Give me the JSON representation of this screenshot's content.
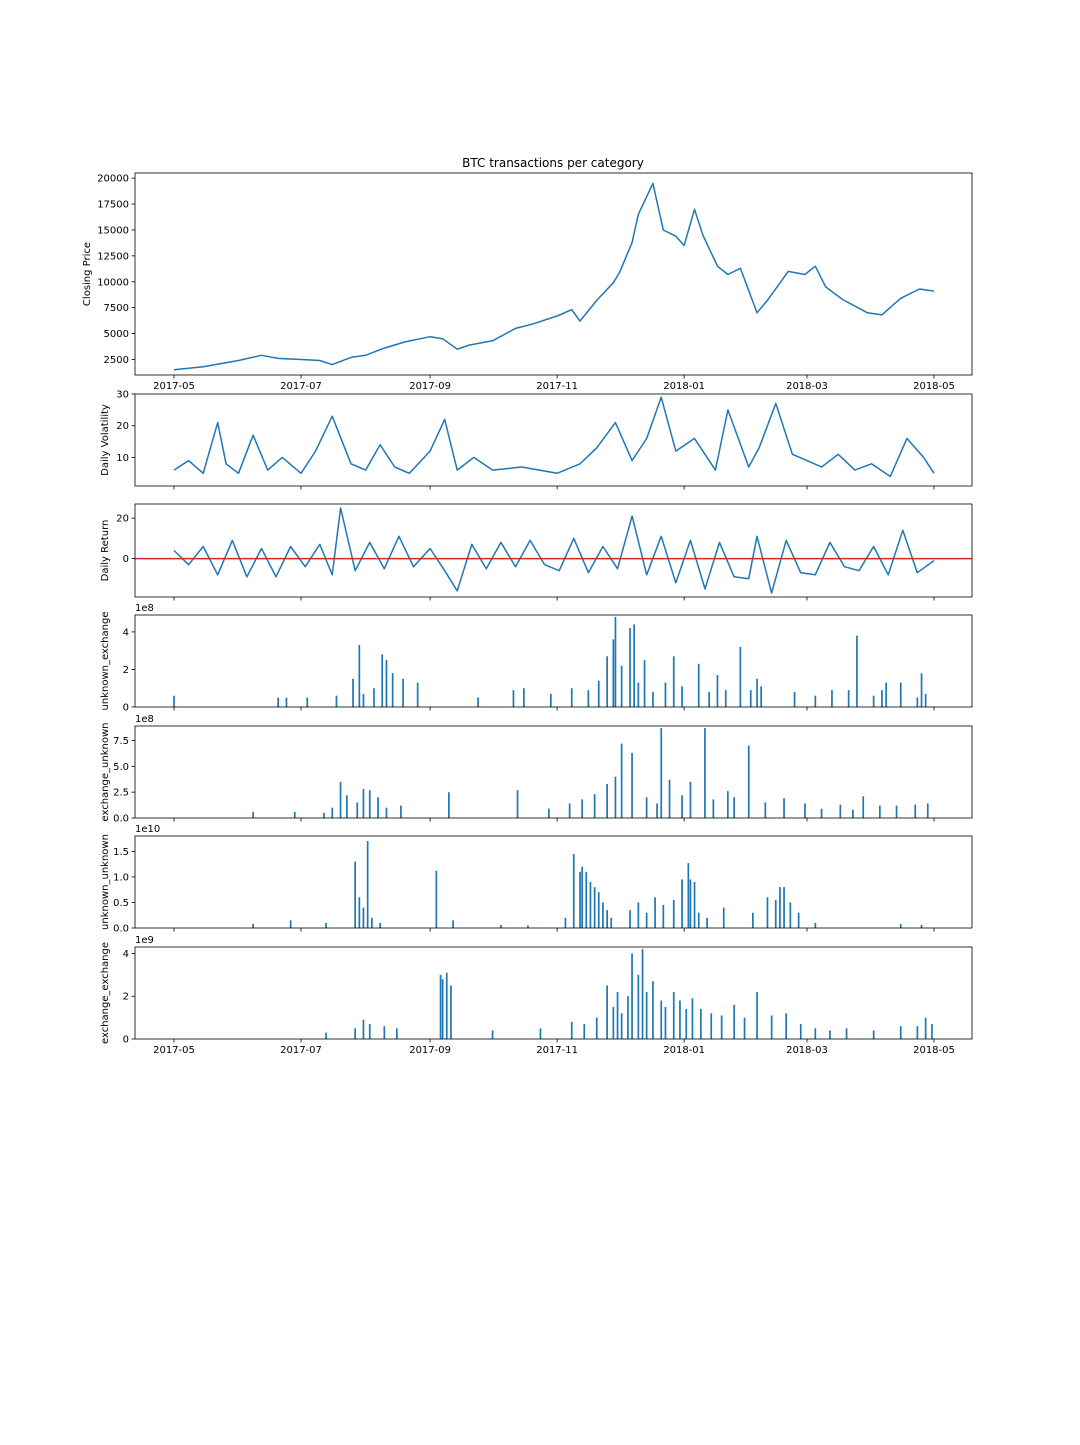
{
  "figure": {
    "title": "BTC transactions per category",
    "date_tick_labels": [
      "2017-05",
      "2017-07",
      "2017-09",
      "2017-11",
      "2018-01",
      "2018-03",
      "2018-05"
    ],
    "date_tick_values": [
      "2017-05-01",
      "2017-07-01",
      "2017-09-01",
      "2017-11-01",
      "2018-01-01",
      "2018-03-01",
      "2018-05-01"
    ],
    "colors": {
      "line": "#1f77b4",
      "bar": "#1f77b4",
      "zero_line": "#d62728"
    }
  },
  "chart_data": [
    {
      "type": "line",
      "title": "BTC transactions per category",
      "ylabel": "Closing Price",
      "xlabel": "",
      "x_range": [
        "2017-05-01",
        "2018-05-01"
      ],
      "ylim": [
        1000,
        20500
      ],
      "yticks": [
        2500,
        5000,
        7500,
        10000,
        12500,
        15000,
        17500,
        20000
      ],
      "grid": false,
      "series": [
        {
          "x": [
            "2017-05-01",
            "2017-05-15",
            "2017-06-01",
            "2017-06-12",
            "2017-06-20",
            "2017-07-01",
            "2017-07-10",
            "2017-07-16",
            "2017-07-25",
            "2017-08-01",
            "2017-08-10",
            "2017-08-20",
            "2017-09-01",
            "2017-09-07",
            "2017-09-14",
            "2017-09-20",
            "2017-10-01",
            "2017-10-12",
            "2017-10-20",
            "2017-11-01",
            "2017-11-08",
            "2017-11-12",
            "2017-11-20",
            "2017-11-28",
            "2017-12-01",
            "2017-12-07",
            "2017-12-10",
            "2017-12-17",
            "2017-12-22",
            "2017-12-28",
            "2018-01-01",
            "2018-01-06",
            "2018-01-10",
            "2018-01-17",
            "2018-01-22",
            "2018-01-28",
            "2018-02-05",
            "2018-02-10",
            "2018-02-20",
            "2018-02-28",
            "2018-03-05",
            "2018-03-10",
            "2018-03-18",
            "2018-03-30",
            "2018-04-06",
            "2018-04-15",
            "2018-04-24",
            "2018-05-01"
          ],
          "y": [
            1500,
            1800,
            2400,
            2900,
            2600,
            2500,
            2400,
            2000,
            2700,
            2900,
            3600,
            4200,
            4700,
            4500,
            3500,
            3900,
            4300,
            5500,
            5900,
            6700,
            7300,
            6200,
            8200,
            9900,
            10900,
            13800,
            16500,
            19500,
            15000,
            14400,
            13500,
            17000,
            14500,
            11500,
            10700,
            11300,
            7000,
            8200,
            11000,
            10700,
            11500,
            9500,
            8300,
            7000,
            6800,
            8400,
            9300,
            9100
          ]
        }
      ]
    },
    {
      "type": "line",
      "ylabel": "Daily Volatility",
      "xlabel": "",
      "x_range": [
        "2017-05-01",
        "2018-05-01"
      ],
      "ylim": [
        1,
        30
      ],
      "yticks": [
        10,
        20,
        30
      ],
      "grid": false,
      "series": [
        {
          "x": [
            "2017-05-01",
            "2017-05-08",
            "2017-05-15",
            "2017-05-22",
            "2017-05-26",
            "2017-06-01",
            "2017-06-08",
            "2017-06-15",
            "2017-06-22",
            "2017-07-01",
            "2017-07-08",
            "2017-07-16",
            "2017-07-25",
            "2017-08-01",
            "2017-08-08",
            "2017-08-15",
            "2017-08-22",
            "2017-09-01",
            "2017-09-08",
            "2017-09-14",
            "2017-09-22",
            "2017-10-01",
            "2017-10-15",
            "2017-11-01",
            "2017-11-12",
            "2017-11-20",
            "2017-11-29",
            "2017-12-07",
            "2017-12-14",
            "2017-12-21",
            "2017-12-28",
            "2018-01-06",
            "2018-01-16",
            "2018-01-22",
            "2018-02-01",
            "2018-02-06",
            "2018-02-14",
            "2018-02-22",
            "2018-03-01",
            "2018-03-08",
            "2018-03-16",
            "2018-03-24",
            "2018-04-01",
            "2018-04-10",
            "2018-04-18",
            "2018-04-26",
            "2018-05-01"
          ],
          "y": [
            6,
            9,
            5,
            21,
            8,
            5,
            17,
            6,
            10,
            5,
            12,
            23,
            8,
            6,
            14,
            7,
            5,
            12,
            22,
            6,
            10,
            6,
            7,
            5,
            8,
            13,
            21,
            9,
            16,
            29,
            12,
            16,
            6,
            25,
            7,
            13,
            27,
            11,
            9,
            7,
            11,
            6,
            8,
            4,
            16,
            10,
            5
          ]
        }
      ]
    },
    {
      "type": "line",
      "ylabel": "Daily Return",
      "xlabel": "",
      "x_range": [
        "2017-05-01",
        "2018-05-01"
      ],
      "ylim": [
        -19,
        27
      ],
      "yticks": [
        0,
        20
      ],
      "grid": false,
      "reference_line": 0,
      "series": [
        {
          "x": [
            "2017-05-01",
            "2017-05-08",
            "2017-05-15",
            "2017-05-22",
            "2017-05-29",
            "2017-06-05",
            "2017-06-12",
            "2017-06-19",
            "2017-06-26",
            "2017-07-03",
            "2017-07-10",
            "2017-07-16",
            "2017-07-20",
            "2017-07-27",
            "2017-08-03",
            "2017-08-10",
            "2017-08-17",
            "2017-08-24",
            "2017-09-01",
            "2017-09-08",
            "2017-09-14",
            "2017-09-21",
            "2017-09-28",
            "2017-10-05",
            "2017-10-12",
            "2017-10-19",
            "2017-10-26",
            "2017-11-02",
            "2017-11-09",
            "2017-11-16",
            "2017-11-23",
            "2017-11-30",
            "2017-12-07",
            "2017-12-14",
            "2017-12-21",
            "2017-12-28",
            "2018-01-04",
            "2018-01-11",
            "2018-01-18",
            "2018-01-25",
            "2018-02-01",
            "2018-02-05",
            "2018-02-12",
            "2018-02-19",
            "2018-02-26",
            "2018-03-05",
            "2018-03-12",
            "2018-03-19",
            "2018-03-26",
            "2018-04-02",
            "2018-04-09",
            "2018-04-16",
            "2018-04-23",
            "2018-05-01"
          ],
          "y": [
            4,
            -3,
            6,
            -8,
            9,
            -9,
            5,
            -9,
            6,
            -4,
            7,
            -8,
            25,
            -6,
            8,
            -5,
            11,
            -4,
            5,
            -6,
            -16,
            7,
            -5,
            8,
            -4,
            9,
            -3,
            -6,
            10,
            -7,
            6,
            -5,
            21,
            -8,
            11,
            -12,
            9,
            -15,
            8,
            -9,
            -10,
            11,
            -17,
            9,
            -7,
            -8,
            8,
            -4,
            -6,
            6,
            -8,
            14,
            -7,
            -1
          ]
        }
      ]
    },
    {
      "type": "bar",
      "ylabel": "unknown_exchange",
      "xlabel": "",
      "scale_label": "1e8",
      "x_range": [
        "2017-05-01",
        "2018-05-01"
      ],
      "ylim": [
        0,
        4.9
      ],
      "yticks": [
        0,
        2,
        4
      ],
      "grid": false,
      "series": [
        {
          "x": [
            "2017-05-01",
            "2017-06-20",
            "2017-06-24",
            "2017-07-04",
            "2017-07-18",
            "2017-07-26",
            "2017-07-29",
            "2017-07-31",
            "2017-08-05",
            "2017-08-09",
            "2017-08-11",
            "2017-08-14",
            "2017-08-19",
            "2017-08-26",
            "2017-09-24",
            "2017-10-11",
            "2017-10-16",
            "2017-10-29",
            "2017-11-08",
            "2017-11-16",
            "2017-11-21",
            "2017-11-25",
            "2017-11-28",
            "2017-11-29",
            "2017-12-02",
            "2017-12-06",
            "2017-12-08",
            "2017-12-10",
            "2017-12-13",
            "2017-12-17",
            "2017-12-23",
            "2017-12-27",
            "2017-12-31",
            "2018-01-08",
            "2018-01-13",
            "2018-01-17",
            "2018-01-21",
            "2018-01-28",
            "2018-02-02",
            "2018-02-05",
            "2018-02-07",
            "2018-02-23",
            "2018-03-05",
            "2018-03-13",
            "2018-03-21",
            "2018-03-25",
            "2018-04-02",
            "2018-04-06",
            "2018-04-08",
            "2018-04-15",
            "2018-04-23",
            "2018-04-25",
            "2018-04-27"
          ],
          "y": [
            0.6,
            0.5,
            0.5,
            0.5,
            0.6,
            1.5,
            3.3,
            0.7,
            1.0,
            2.8,
            2.5,
            1.8,
            1.5,
            1.3,
            0.5,
            0.9,
            1.0,
            0.7,
            1.0,
            0.9,
            1.4,
            2.7,
            3.6,
            4.8,
            2.2,
            4.2,
            4.4,
            1.3,
            2.5,
            0.8,
            1.3,
            2.7,
            1.1,
            2.3,
            0.8,
            1.7,
            0.9,
            3.2,
            0.9,
            1.5,
            1.1,
            0.8,
            0.6,
            0.9,
            0.9,
            3.8,
            0.6,
            0.9,
            1.3,
            1.3,
            0.5,
            1.8,
            0.7
          ]
        }
      ]
    },
    {
      "type": "bar",
      "ylabel": "exchange_unknown",
      "xlabel": "",
      "scale_label": "1e8",
      "x_range": [
        "2017-05-01",
        "2018-05-01"
      ],
      "ylim": [
        0,
        8.9
      ],
      "yticks": [
        0.0,
        2.5,
        5.0,
        7.5
      ],
      "yticklabels": [
        "0.0",
        "2.5",
        "5.0",
        "7.5"
      ],
      "grid": false,
      "series": [
        {
          "x": [
            "2017-06-08",
            "2017-06-28",
            "2017-07-12",
            "2017-07-16",
            "2017-07-20",
            "2017-07-23",
            "2017-07-28",
            "2017-07-31",
            "2017-08-03",
            "2017-08-07",
            "2017-08-11",
            "2017-08-18",
            "2017-09-10",
            "2017-10-13",
            "2017-10-28",
            "2017-11-07",
            "2017-11-13",
            "2017-11-19",
            "2017-11-25",
            "2017-11-29",
            "2017-12-02",
            "2017-12-07",
            "2017-12-14",
            "2017-12-19",
            "2017-12-21",
            "2017-12-25",
            "2017-12-31",
            "2018-01-04",
            "2018-01-11",
            "2018-01-15",
            "2018-01-22",
            "2018-01-25",
            "2018-02-01",
            "2018-02-09",
            "2018-02-18",
            "2018-02-28",
            "2018-03-08",
            "2018-03-17",
            "2018-03-23",
            "2018-03-28",
            "2018-04-05",
            "2018-04-13",
            "2018-04-22",
            "2018-04-28"
          ],
          "y": [
            0.6,
            0.6,
            0.5,
            1.0,
            3.5,
            2.2,
            1.5,
            2.8,
            2.7,
            2.0,
            1.0,
            1.2,
            2.5,
            2.7,
            0.9,
            1.4,
            1.8,
            2.3,
            3.3,
            4.0,
            7.2,
            6.3,
            2.0,
            1.4,
            8.7,
            3.7,
            2.2,
            3.5,
            8.7,
            1.8,
            2.6,
            2.0,
            7.0,
            1.5,
            1.9,
            1.4,
            0.9,
            1.3,
            0.8,
            2.1,
            1.2,
            1.2,
            1.3,
            1.4
          ]
        }
      ]
    },
    {
      "type": "bar",
      "ylabel": "unknown_unknown",
      "xlabel": "",
      "scale_label": "1e10",
      "x_range": [
        "2017-05-01",
        "2018-05-01"
      ],
      "ylim": [
        0,
        1.8
      ],
      "yticks": [
        0.0,
        0.5,
        1.0,
        1.5
      ],
      "yticklabels": [
        "0.0",
        "0.5",
        "1.0",
        "1.5"
      ],
      "grid": false,
      "series": [
        {
          "x": [
            "2017-06-08",
            "2017-06-26",
            "2017-07-13",
            "2017-07-27",
            "2017-07-29",
            "2017-07-31",
            "2017-08-02",
            "2017-08-04",
            "2017-08-08",
            "2017-09-04",
            "2017-09-12",
            "2017-10-05",
            "2017-10-18",
            "2017-11-05",
            "2017-11-09",
            "2017-11-12",
            "2017-11-13",
            "2017-11-15",
            "2017-11-17",
            "2017-11-19",
            "2017-11-21",
            "2017-11-23",
            "2017-11-25",
            "2017-11-27",
            "2017-12-06",
            "2017-12-10",
            "2017-12-14",
            "2017-12-18",
            "2017-12-22",
            "2017-12-27",
            "2017-12-31",
            "2018-01-03",
            "2018-01-04",
            "2018-01-06",
            "2018-01-08",
            "2018-01-12",
            "2018-01-20",
            "2018-02-03",
            "2018-02-10",
            "2018-02-14",
            "2018-02-16",
            "2018-02-18",
            "2018-02-21",
            "2018-02-25",
            "2018-03-05",
            "2018-04-15",
            "2018-04-25"
          ],
          "y": [
            0.08,
            0.15,
            0.1,
            1.3,
            0.6,
            0.4,
            1.7,
            0.2,
            0.1,
            1.12,
            0.15,
            0.06,
            0.05,
            0.2,
            1.45,
            1.1,
            1.2,
            1.1,
            0.9,
            0.8,
            0.7,
            0.5,
            0.35,
            0.2,
            0.35,
            0.5,
            0.3,
            0.6,
            0.45,
            0.55,
            0.95,
            1.27,
            0.95,
            0.9,
            0.3,
            0.2,
            0.4,
            0.3,
            0.6,
            0.55,
            0.8,
            0.8,
            0.5,
            0.3,
            0.1,
            0.08,
            0.06
          ]
        }
      ]
    },
    {
      "type": "bar",
      "ylabel": "exchange_exchange",
      "xlabel": "",
      "scale_label": "1e9",
      "x_range": [
        "2017-05-01",
        "2018-05-01"
      ],
      "ylim": [
        0,
        4.3
      ],
      "yticks": [
        0,
        2,
        4
      ],
      "grid": false,
      "series": [
        {
          "x": [
            "2017-07-13",
            "2017-07-27",
            "2017-07-31",
            "2017-08-03",
            "2017-08-10",
            "2017-08-16",
            "2017-09-06",
            "2017-09-07",
            "2017-09-09",
            "2017-09-11",
            "2017-10-01",
            "2017-10-24",
            "2017-11-08",
            "2017-11-14",
            "2017-11-20",
            "2017-11-25",
            "2017-11-28",
            "2017-11-30",
            "2017-12-02",
            "2017-12-05",
            "2017-12-07",
            "2017-12-10",
            "2017-12-12",
            "2017-12-14",
            "2017-12-17",
            "2017-12-21",
            "2017-12-23",
            "2017-12-27",
            "2017-12-30",
            "2018-01-02",
            "2018-01-05",
            "2018-01-09",
            "2018-01-14",
            "2018-01-19",
            "2018-01-25",
            "2018-01-30",
            "2018-02-05",
            "2018-02-12",
            "2018-02-19",
            "2018-02-26",
            "2018-03-05",
            "2018-03-12",
            "2018-03-20",
            "2018-04-02",
            "2018-04-15",
            "2018-04-23",
            "2018-04-27",
            "2018-04-30"
          ],
          "y": [
            0.3,
            0.5,
            0.9,
            0.7,
            0.6,
            0.5,
            3.0,
            2.8,
            3.1,
            2.5,
            0.4,
            0.5,
            0.8,
            0.7,
            1.0,
            2.5,
            1.5,
            2.2,
            1.2,
            2.0,
            4.0,
            3.0,
            4.2,
            2.2,
            2.7,
            1.8,
            1.5,
            2.2,
            1.8,
            1.4,
            1.9,
            1.4,
            1.2,
            1.1,
            1.6,
            1.0,
            2.2,
            1.1,
            1.2,
            0.7,
            0.5,
            0.4,
            0.5,
            0.4,
            0.6,
            0.6,
            1.0,
            0.7
          ]
        }
      ]
    }
  ]
}
